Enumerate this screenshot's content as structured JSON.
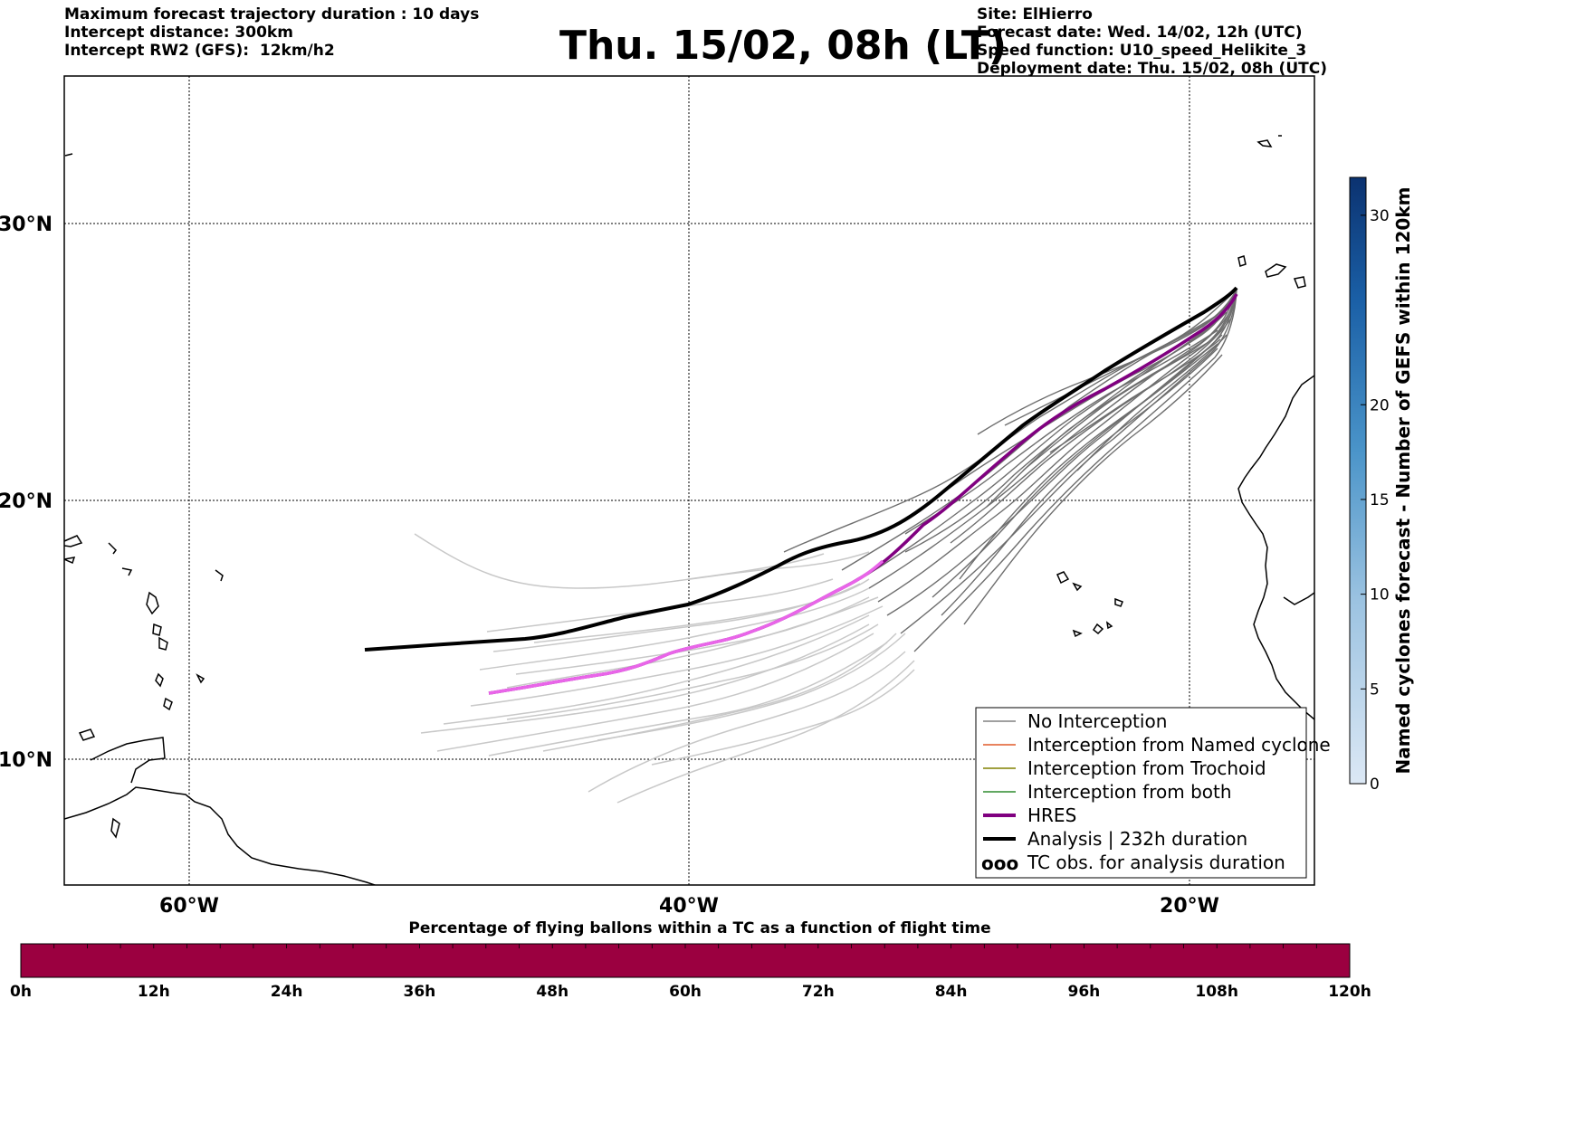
{
  "header": {
    "left": [
      "Maximum forecast trajectory duration : 10 days",
      "Intercept distance: 300km",
      "Intercept RW2 (GFS):  12km/h2"
    ],
    "title": "Thu. 15/02, 08h (LT)",
    "right": [
      "Site: ElHierro",
      "Forecast date: Wed. 14/02, 12h (UTC)",
      "Speed function: U10_speed_Helikite_3",
      "Deployment date: Thu. 15/02, 08h (UTC)"
    ]
  },
  "map": {
    "lat_labels": [
      "30°N",
      "20°N",
      "10°N"
    ],
    "lon_labels": [
      "60°W",
      "40°W",
      "20°W"
    ],
    "lon_range": [
      -65,
      -15
    ],
    "lat_range": [
      5.5,
      35
    ]
  },
  "legend": {
    "items": [
      {
        "label": "No Interception",
        "color": "#808080"
      },
      {
        "label": "Interception from Named cyclone",
        "color": "#e05a28"
      },
      {
        "label": "Interception from Trochoid",
        "color": "#808000"
      },
      {
        "label": "Interception from both",
        "color": "#2e8b2e"
      },
      {
        "label": "HRES",
        "color": "#800080"
      },
      {
        "label": "Analysis | 232h duration",
        "color": "#000000"
      },
      {
        "label": "TC obs. for analysis duration",
        "icon": "cyclone-symbols-icon"
      }
    ]
  },
  "colorbar": {
    "title": "Named cyclones forecast - Number of GEFS within 120km",
    "ticks": [
      "0",
      "5",
      "10",
      "15",
      "20",
      "30"
    ],
    "tick_values": [
      0,
      5,
      10,
      15,
      20,
      30
    ],
    "range": [
      0,
      32
    ]
  },
  "pct_bar": {
    "title": "Percentage of flying ballons within a TC as a function of flight time",
    "ticks": [
      "0h",
      "12h",
      "24h",
      "36h",
      "48h",
      "60h",
      "72h",
      "84h",
      "96h",
      "108h",
      "120h"
    ],
    "color": "#9b0040"
  }
}
